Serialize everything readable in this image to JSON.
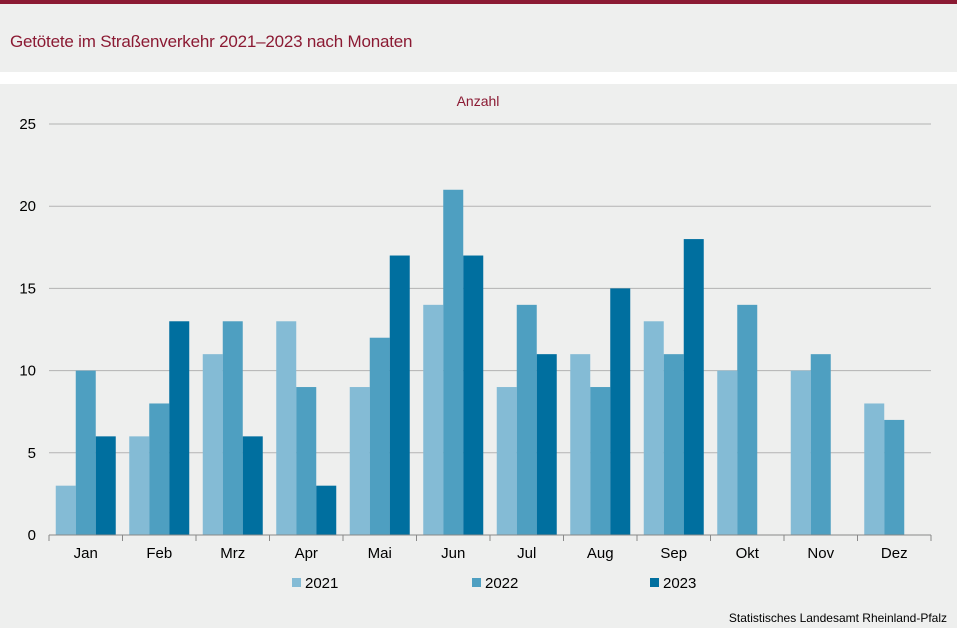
{
  "header": {
    "title": "Getötete im Straßenverkehr 2021–2023 nach Monaten"
  },
  "source": "Statistisches Landesamt  Rheinland-Pfalz",
  "colors": {
    "accent": "#8b1a33",
    "title": "#8b1a33",
    "series_2021": "#84bbd5",
    "series_2022": "#4e9fc1",
    "series_2023": "#006f9f",
    "grid": "#b3b3b3",
    "axis": "#888888"
  },
  "chart_data": {
    "type": "bar",
    "ylabel": "Anzahl",
    "ylim": [
      0,
      25
    ],
    "yticks": [
      0,
      5,
      10,
      15,
      20,
      25
    ],
    "grid": true,
    "legend": "bottom",
    "categories": [
      "Jan",
      "Feb",
      "Mrz",
      "Apr",
      "Mai",
      "Jun",
      "Jul",
      "Aug",
      "Sep",
      "Okt",
      "Nov",
      "Dez"
    ],
    "series": [
      {
        "name": "2021",
        "values": [
          3,
          6,
          11,
          13,
          9,
          14,
          9,
          11,
          13,
          10,
          10,
          8
        ]
      },
      {
        "name": "2022",
        "values": [
          10,
          8,
          13,
          9,
          12,
          21,
          14,
          9,
          11,
          14,
          11,
          7
        ]
      },
      {
        "name": "2023",
        "values": [
          6,
          13,
          6,
          3,
          17,
          17,
          11,
          15,
          18,
          null,
          null,
          null
        ]
      }
    ]
  }
}
